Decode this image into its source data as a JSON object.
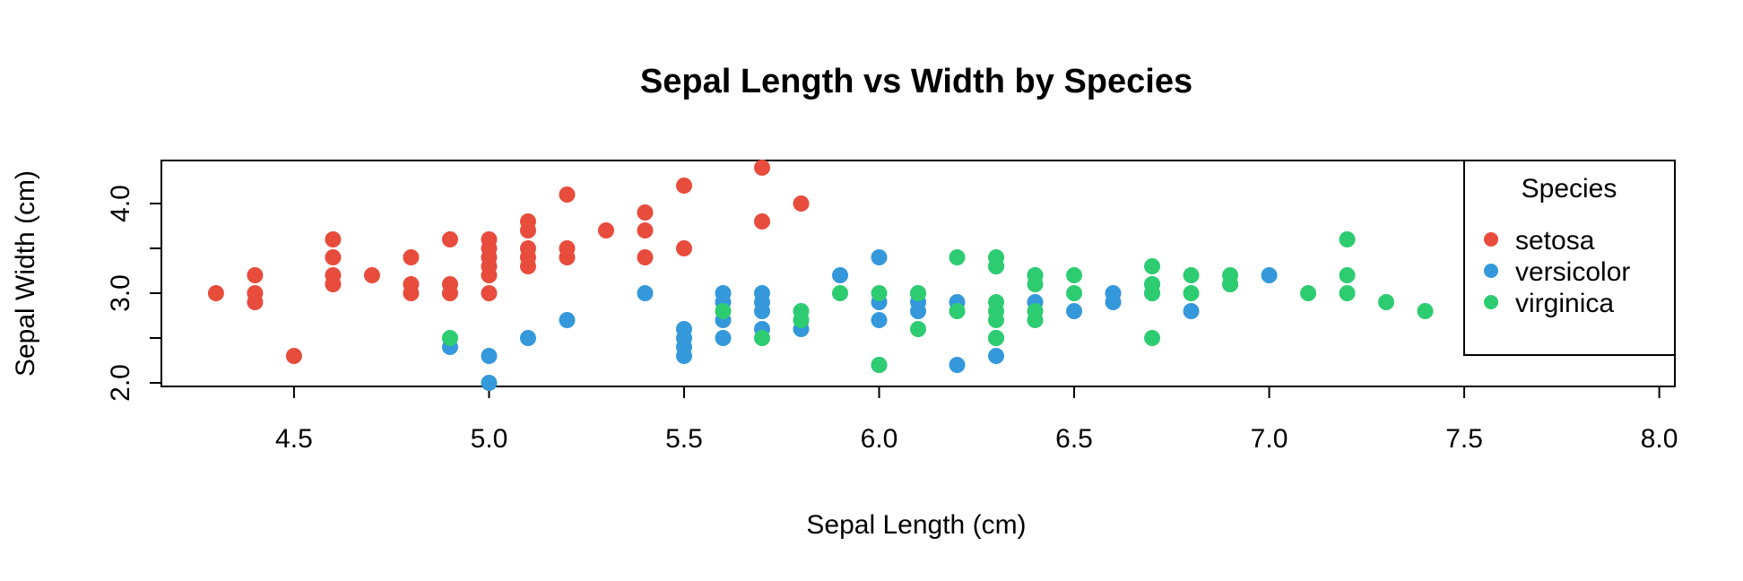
{
  "chart_data": {
    "type": "scatter",
    "title": "Sepal Length vs Width by Species",
    "xlabel": "Sepal Length (cm)",
    "ylabel": "Sepal Width (cm)",
    "xlim": [
      4.16,
      8.04
    ],
    "ylim": [
      1.96,
      4.48
    ],
    "x_ticks": [
      4.5,
      5.0,
      5.5,
      6.0,
      6.5,
      7.0,
      7.5,
      8.0
    ],
    "x_tick_labels": [
      "4.5",
      "5.0",
      "5.5",
      "6.0",
      "6.5",
      "7.0",
      "7.5",
      "8.0"
    ],
    "y_ticks": [
      2.0,
      2.5,
      3.0,
      3.5,
      4.0
    ],
    "y_tick_labels": [
      "2.0",
      "3.0",
      "4.0"
    ],
    "y_labeled_ticks": [
      2.0,
      3.0,
      4.0
    ],
    "grid": false,
    "legend": {
      "title": "Species",
      "position": "top-right"
    },
    "series": [
      {
        "name": "setosa",
        "color": "#E74C3C",
        "points": [
          [
            4.3,
            3.0
          ],
          [
            4.4,
            2.9
          ],
          [
            4.4,
            3.0
          ],
          [
            4.4,
            3.2
          ],
          [
            4.5,
            2.3
          ],
          [
            4.6,
            3.1
          ],
          [
            4.6,
            3.2
          ],
          [
            4.6,
            3.4
          ],
          [
            4.6,
            3.6
          ],
          [
            4.7,
            3.2
          ],
          [
            4.8,
            3.0
          ],
          [
            4.8,
            3.1
          ],
          [
            4.8,
            3.4
          ],
          [
            4.9,
            3.0
          ],
          [
            4.9,
            3.1
          ],
          [
            4.9,
            3.6
          ],
          [
            5.0,
            3.0
          ],
          [
            5.0,
            3.2
          ],
          [
            5.0,
            3.3
          ],
          [
            5.0,
            3.4
          ],
          [
            5.0,
            3.5
          ],
          [
            5.0,
            3.6
          ],
          [
            5.1,
            3.3
          ],
          [
            5.1,
            3.4
          ],
          [
            5.1,
            3.5
          ],
          [
            5.1,
            3.7
          ],
          [
            5.1,
            3.8
          ],
          [
            5.2,
            3.4
          ],
          [
            5.2,
            3.5
          ],
          [
            5.2,
            4.1
          ],
          [
            5.3,
            3.7
          ],
          [
            5.4,
            3.4
          ],
          [
            5.4,
            3.7
          ],
          [
            5.4,
            3.9
          ],
          [
            5.5,
            3.5
          ],
          [
            5.5,
            4.2
          ],
          [
            5.7,
            3.8
          ],
          [
            5.7,
            4.4
          ],
          [
            5.8,
            4.0
          ]
        ]
      },
      {
        "name": "versicolor",
        "color": "#3498DB",
        "points": [
          [
            4.9,
            2.4
          ],
          [
            5.0,
            2.0
          ],
          [
            5.0,
            2.3
          ],
          [
            5.1,
            2.5
          ],
          [
            5.2,
            2.7
          ],
          [
            5.4,
            3.0
          ],
          [
            5.5,
            2.3
          ],
          [
            5.5,
            2.4
          ],
          [
            5.5,
            2.5
          ],
          [
            5.5,
            2.6
          ],
          [
            5.6,
            2.5
          ],
          [
            5.6,
            2.7
          ],
          [
            5.6,
            2.9
          ],
          [
            5.6,
            3.0
          ],
          [
            5.7,
            2.6
          ],
          [
            5.7,
            2.8
          ],
          [
            5.7,
            2.9
          ],
          [
            5.7,
            3.0
          ],
          [
            5.8,
            2.6
          ],
          [
            5.8,
            2.7
          ],
          [
            5.9,
            3.2
          ],
          [
            6.0,
            2.2
          ],
          [
            6.0,
            2.7
          ],
          [
            6.0,
            2.9
          ],
          [
            6.0,
            3.4
          ],
          [
            6.1,
            2.8
          ],
          [
            6.1,
            2.9
          ],
          [
            6.1,
            3.0
          ],
          [
            6.2,
            2.2
          ],
          [
            6.2,
            2.9
          ],
          [
            6.3,
            2.3
          ],
          [
            6.3,
            2.5
          ],
          [
            6.3,
            3.3
          ],
          [
            6.4,
            2.9
          ],
          [
            6.4,
            3.2
          ],
          [
            6.5,
            2.8
          ],
          [
            6.6,
            2.9
          ],
          [
            6.6,
            3.0
          ],
          [
            6.7,
            3.0
          ],
          [
            6.7,
            3.1
          ],
          [
            6.8,
            2.8
          ],
          [
            6.9,
            3.1
          ],
          [
            7.0,
            3.2
          ]
        ]
      },
      {
        "name": "virginica",
        "color": "#2ECC71",
        "points": [
          [
            4.9,
            2.5
          ],
          [
            5.6,
            2.8
          ],
          [
            5.7,
            2.5
          ],
          [
            5.8,
            2.7
          ],
          [
            5.8,
            2.8
          ],
          [
            5.9,
            3.0
          ],
          [
            6.0,
            2.2
          ],
          [
            6.0,
            3.0
          ],
          [
            6.1,
            2.6
          ],
          [
            6.1,
            3.0
          ],
          [
            6.2,
            2.8
          ],
          [
            6.2,
            3.4
          ],
          [
            6.3,
            2.5
          ],
          [
            6.3,
            2.7
          ],
          [
            6.3,
            2.8
          ],
          [
            6.3,
            2.9
          ],
          [
            6.3,
            3.3
          ],
          [
            6.3,
            3.4
          ],
          [
            6.4,
            2.7
          ],
          [
            6.4,
            2.8
          ],
          [
            6.4,
            3.1
          ],
          [
            6.4,
            3.2
          ],
          [
            6.5,
            3.0
          ],
          [
            6.5,
            3.2
          ],
          [
            6.7,
            2.5
          ],
          [
            6.7,
            3.0
          ],
          [
            6.7,
            3.1
          ],
          [
            6.7,
            3.3
          ],
          [
            6.8,
            3.0
          ],
          [
            6.8,
            3.2
          ],
          [
            6.9,
            3.1
          ],
          [
            6.9,
            3.2
          ],
          [
            7.1,
            3.0
          ],
          [
            7.2,
            3.0
          ],
          [
            7.2,
            3.2
          ],
          [
            7.2,
            3.6
          ],
          [
            7.3,
            2.9
          ],
          [
            7.4,
            2.8
          ]
        ]
      }
    ]
  }
}
